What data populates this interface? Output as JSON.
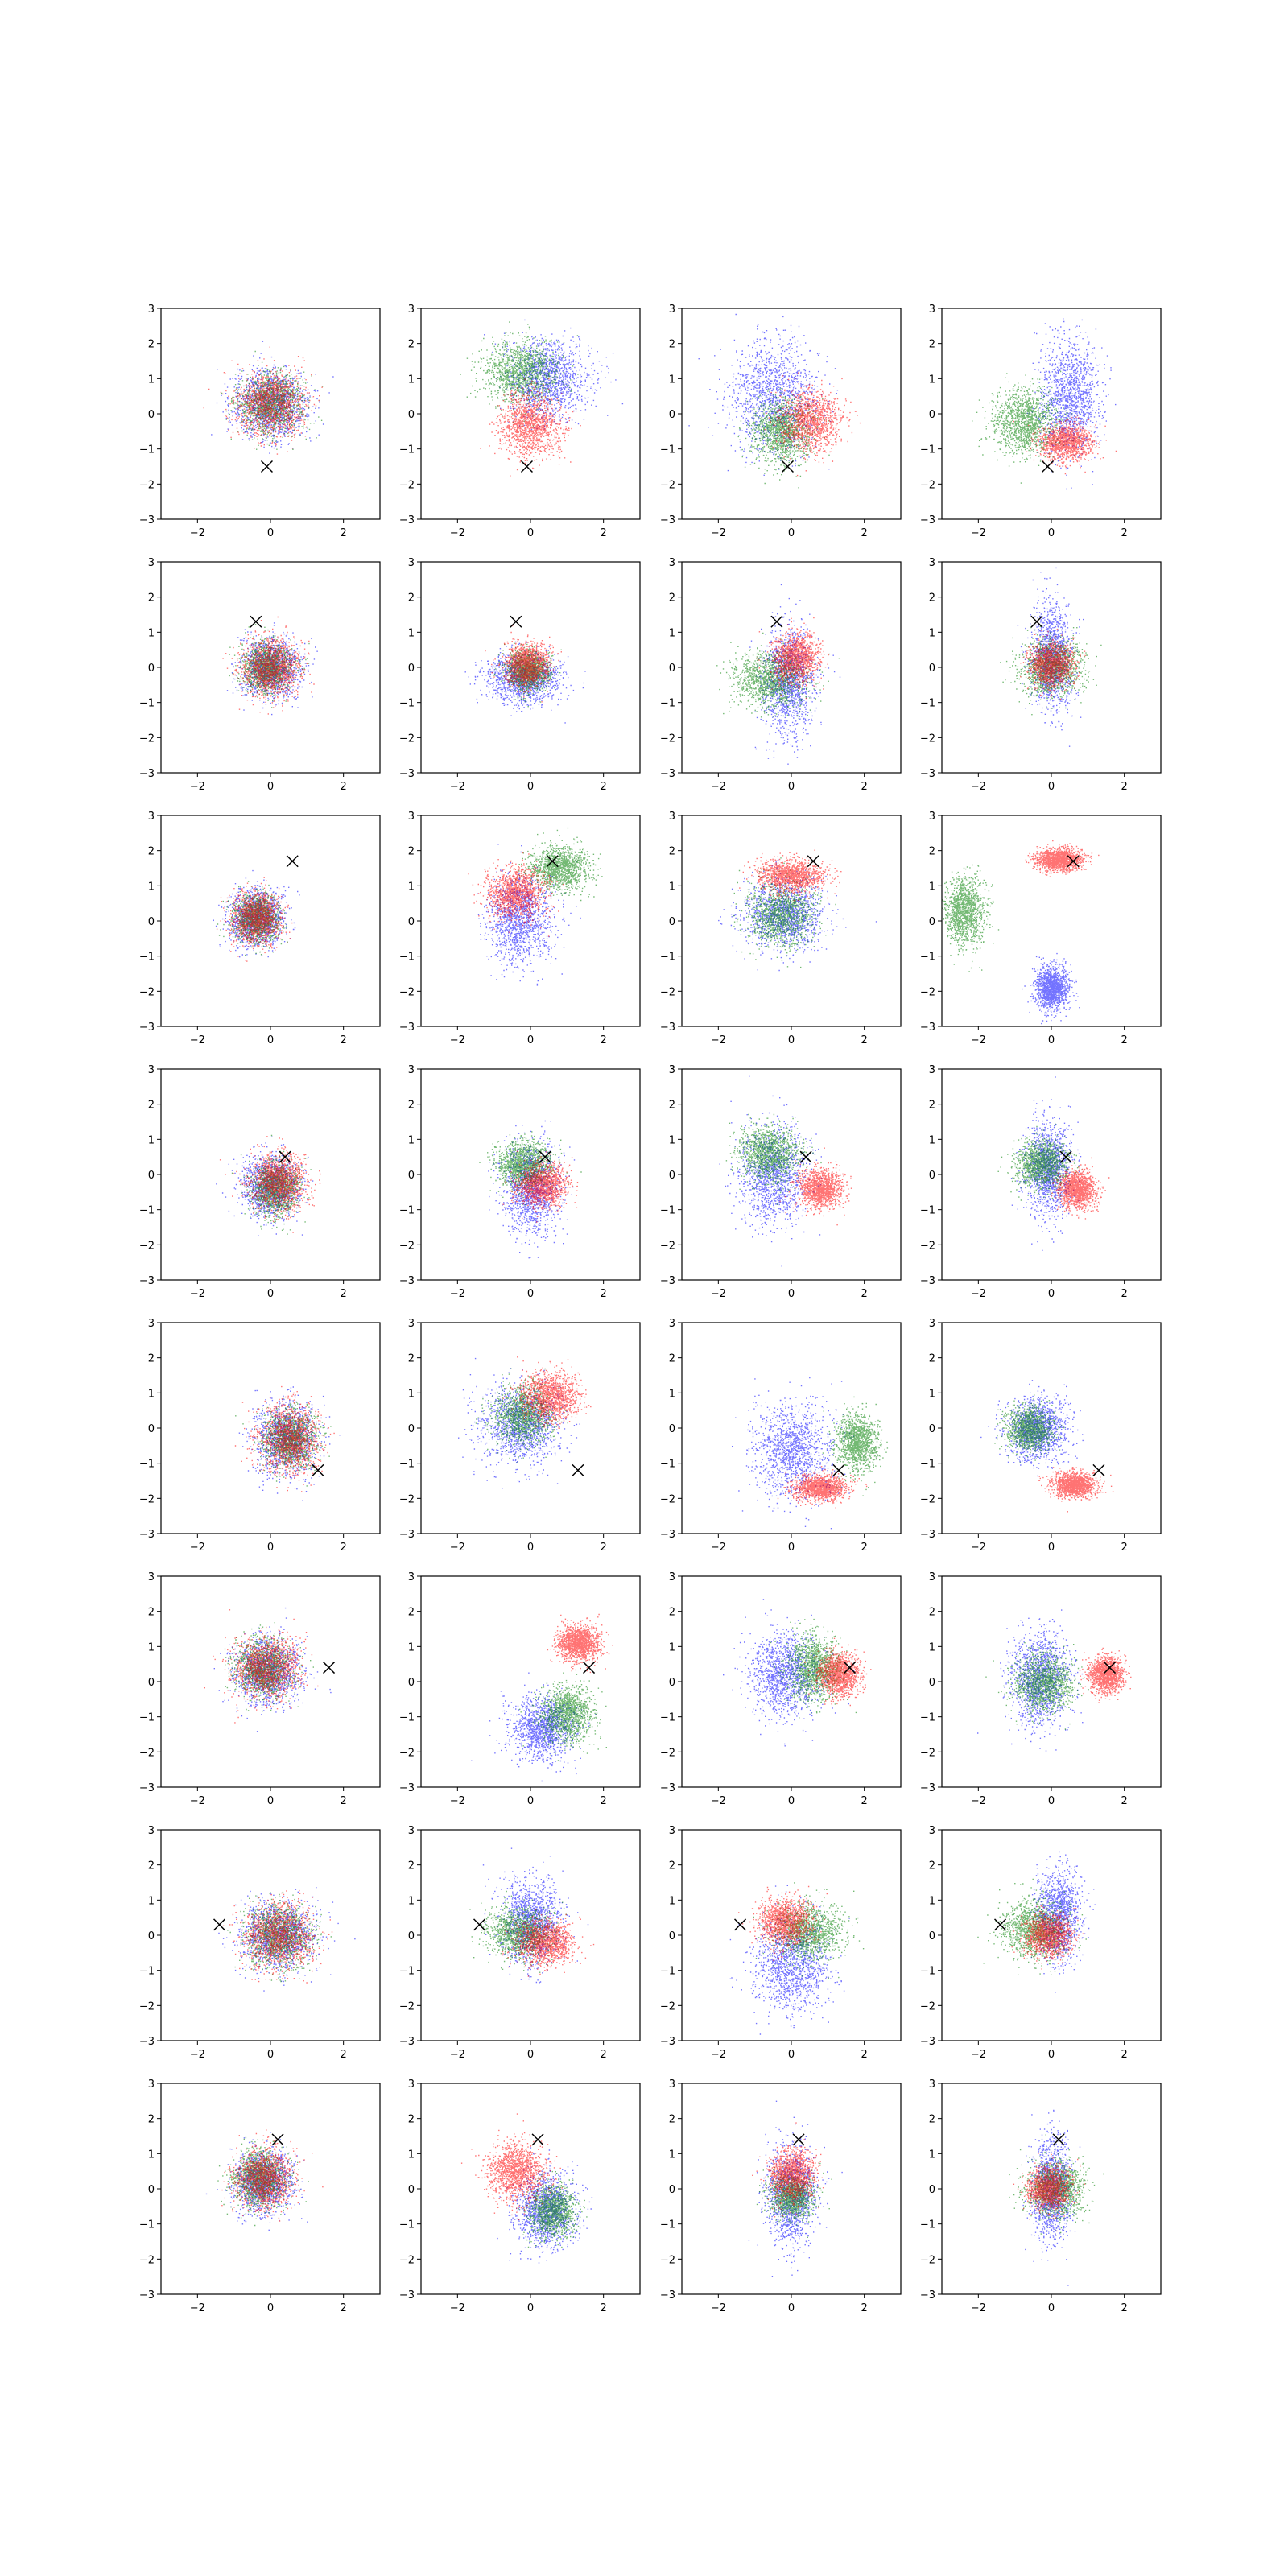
{
  "chart_data": {
    "type": "scatter",
    "layout": {
      "rows": 8,
      "cols": 4
    },
    "axes": {
      "xlim": [
        -3,
        3
      ],
      "ylim": [
        -3,
        3
      ],
      "xticks": [
        -2,
        0,
        2
      ],
      "yticks": [
        -3,
        -2,
        -1,
        0,
        1,
        2,
        3
      ],
      "xtick_labels": [
        "−2",
        "0",
        "2"
      ],
      "ytick_labels": [
        "−3",
        "−2",
        "−1",
        "0",
        "1",
        "2",
        "3"
      ],
      "grid": false
    },
    "series_colors": {
      "blue": "#0000ff",
      "green": "#008000",
      "red": "#ff0000"
    },
    "marker": {
      "symbol": "x",
      "color": "#000000"
    },
    "points_per_cluster": 1300,
    "panels": [
      {
        "marker": [
          -0.1,
          -1.5
        ],
        "clusters": [
          {
            "color": "blue",
            "cx": 0.0,
            "cy": 0.3,
            "sx": 1.0,
            "sy": 0.95
          },
          {
            "color": "green",
            "cx": 0.0,
            "cy": 0.3,
            "sx": 0.9,
            "sy": 0.85
          },
          {
            "color": "red",
            "cx": 0.0,
            "cy": 0.3,
            "sx": 0.95,
            "sy": 0.9
          }
        ]
      },
      {
        "marker": [
          -0.1,
          -1.5
        ],
        "clusters": [
          {
            "color": "blue",
            "cx": 0.5,
            "cy": 1.0,
            "sx": 1.1,
            "sy": 1.1
          },
          {
            "color": "green",
            "cx": -0.3,
            "cy": 1.2,
            "sx": 1.0,
            "sy": 0.9
          },
          {
            "color": "red",
            "cx": 0.0,
            "cy": -0.3,
            "sx": 0.85,
            "sy": 0.85
          }
        ]
      },
      {
        "marker": [
          -0.1,
          -1.5
        ],
        "clusters": [
          {
            "color": "blue",
            "cx": -0.5,
            "cy": 0.5,
            "sx": 1.2,
            "sy": 1.6
          },
          {
            "color": "green",
            "cx": -0.3,
            "cy": -0.5,
            "sx": 0.8,
            "sy": 0.9
          },
          {
            "color": "red",
            "cx": 0.5,
            "cy": -0.2,
            "sx": 0.8,
            "sy": 0.85
          }
        ]
      },
      {
        "marker": [
          -0.1,
          -1.5
        ],
        "clusters": [
          {
            "color": "blue",
            "cx": 0.5,
            "cy": 0.5,
            "sx": 0.8,
            "sy": 1.6
          },
          {
            "color": "green",
            "cx": -0.7,
            "cy": -0.2,
            "sx": 0.9,
            "sy": 0.9
          },
          {
            "color": "red",
            "cx": 0.4,
            "cy": -0.8,
            "sx": 0.7,
            "sy": 0.5
          }
        ]
      },
      {
        "marker": [
          -0.4,
          1.3
        ],
        "clusters": [
          {
            "color": "blue",
            "cx": 0.0,
            "cy": 0.0,
            "sx": 0.8,
            "sy": 0.85
          },
          {
            "color": "green",
            "cx": -0.1,
            "cy": 0.0,
            "sx": 0.65,
            "sy": 0.7
          },
          {
            "color": "red",
            "cx": 0.0,
            "cy": 0.0,
            "sx": 0.75,
            "sy": 0.8
          }
        ]
      },
      {
        "marker": [
          -0.4,
          1.3
        ],
        "clusters": [
          {
            "color": "blue",
            "cx": -0.2,
            "cy": -0.3,
            "sx": 1.0,
            "sy": 0.7
          },
          {
            "color": "green",
            "cx": -0.1,
            "cy": -0.1,
            "sx": 0.55,
            "sy": 0.55
          },
          {
            "color": "red",
            "cx": -0.1,
            "cy": 0.1,
            "sx": 0.6,
            "sy": 0.6
          }
        ]
      },
      {
        "marker": [
          -0.4,
          1.3
        ],
        "clusters": [
          {
            "color": "blue",
            "cx": -0.1,
            "cy": -0.4,
            "sx": 0.7,
            "sy": 1.5
          },
          {
            "color": "green",
            "cx": -0.6,
            "cy": -0.3,
            "sx": 1.0,
            "sy": 0.8
          },
          {
            "color": "red",
            "cx": 0.1,
            "cy": 0.3,
            "sx": 0.6,
            "sy": 0.7
          }
        ]
      },
      {
        "marker": [
          -0.4,
          1.3
        ],
        "clusters": [
          {
            "color": "blue",
            "cx": 0.0,
            "cy": 0.3,
            "sx": 0.55,
            "sy": 1.5
          },
          {
            "color": "green",
            "cx": 0.0,
            "cy": 0.0,
            "sx": 0.85,
            "sy": 0.8
          },
          {
            "color": "red",
            "cx": 0.0,
            "cy": 0.1,
            "sx": 0.6,
            "sy": 0.6
          }
        ]
      },
      {
        "marker": [
          0.6,
          1.7
        ],
        "clusters": [
          {
            "color": "blue",
            "cx": -0.4,
            "cy": 0.1,
            "sx": 0.75,
            "sy": 0.8
          },
          {
            "color": "green",
            "cx": -0.4,
            "cy": 0.1,
            "sx": 0.6,
            "sy": 0.65
          },
          {
            "color": "red",
            "cx": -0.4,
            "cy": 0.1,
            "sx": 0.65,
            "sy": 0.7
          }
        ]
      },
      {
        "marker": [
          0.6,
          1.7
        ],
        "clusters": [
          {
            "color": "blue",
            "cx": -0.3,
            "cy": 0.0,
            "sx": 0.9,
            "sy": 1.2
          },
          {
            "color": "green",
            "cx": 0.8,
            "cy": 1.5,
            "sx": 0.8,
            "sy": 0.6
          },
          {
            "color": "red",
            "cx": -0.4,
            "cy": 0.8,
            "sx": 0.8,
            "sy": 0.7
          }
        ]
      },
      {
        "marker": [
          0.6,
          1.7
        ],
        "clusters": [
          {
            "color": "blue",
            "cx": -0.2,
            "cy": 0.2,
            "sx": 1.1,
            "sy": 1.0
          },
          {
            "color": "green",
            "cx": -0.3,
            "cy": 0.2,
            "sx": 0.9,
            "sy": 0.9
          },
          {
            "color": "red",
            "cx": 0.0,
            "cy": 1.3,
            "sx": 0.85,
            "sy": 0.45
          }
        ]
      },
      {
        "marker": [
          0.6,
          1.7
        ],
        "clusters": [
          {
            "color": "blue",
            "cx": 0.0,
            "cy": -1.9,
            "sx": 0.45,
            "sy": 0.6
          },
          {
            "color": "green",
            "cx": -2.4,
            "cy": 0.3,
            "sx": 0.55,
            "sy": 0.95
          },
          {
            "color": "red",
            "cx": 0.2,
            "cy": 1.75,
            "sx": 0.65,
            "sy": 0.3
          }
        ]
      },
      {
        "marker": [
          0.4,
          0.5
        ],
        "clusters": [
          {
            "color": "blue",
            "cx": 0.0,
            "cy": -0.3,
            "sx": 0.8,
            "sy": 0.85
          },
          {
            "color": "green",
            "cx": 0.1,
            "cy": -0.4,
            "sx": 0.65,
            "sy": 0.75
          },
          {
            "color": "red",
            "cx": 0.2,
            "cy": -0.2,
            "sx": 0.75,
            "sy": 0.8
          }
        ]
      },
      {
        "marker": [
          0.4,
          0.5
        ],
        "clusters": [
          {
            "color": "blue",
            "cx": 0.0,
            "cy": -0.4,
            "sx": 0.75,
            "sy": 1.3
          },
          {
            "color": "green",
            "cx": -0.2,
            "cy": 0.3,
            "sx": 0.75,
            "sy": 0.65
          },
          {
            "color": "red",
            "cx": 0.3,
            "cy": -0.3,
            "sx": 0.7,
            "sy": 0.6
          }
        ]
      },
      {
        "marker": [
          0.4,
          0.5
        ],
        "clusters": [
          {
            "color": "blue",
            "cx": -0.5,
            "cy": 0.0,
            "sx": 0.9,
            "sy": 1.4
          },
          {
            "color": "green",
            "cx": -0.6,
            "cy": 0.6,
            "sx": 0.8,
            "sy": 0.75
          },
          {
            "color": "red",
            "cx": 0.8,
            "cy": -0.4,
            "sx": 0.6,
            "sy": 0.55
          }
        ]
      },
      {
        "marker": [
          0.4,
          0.5
        ],
        "clusters": [
          {
            "color": "blue",
            "cx": -0.1,
            "cy": 0.2,
            "sx": 0.6,
            "sy": 1.35
          },
          {
            "color": "green",
            "cx": -0.3,
            "cy": 0.3,
            "sx": 0.7,
            "sy": 0.65
          },
          {
            "color": "red",
            "cx": 0.7,
            "cy": -0.4,
            "sx": 0.5,
            "sy": 0.5
          }
        ]
      },
      {
        "marker": [
          1.3,
          -1.2
        ],
        "clusters": [
          {
            "color": "blue",
            "cx": 0.4,
            "cy": -0.3,
            "sx": 0.85,
            "sy": 1.0
          },
          {
            "color": "green",
            "cx": 0.5,
            "cy": -0.3,
            "sx": 0.7,
            "sy": 0.8
          },
          {
            "color": "red",
            "cx": 0.5,
            "cy": -0.3,
            "sx": 0.8,
            "sy": 0.95
          }
        ]
      },
      {
        "marker": [
          1.3,
          -1.2
        ],
        "clusters": [
          {
            "color": "blue",
            "cx": -0.3,
            "cy": 0.1,
            "sx": 1.1,
            "sy": 1.1
          },
          {
            "color": "green",
            "cx": -0.2,
            "cy": 0.4,
            "sx": 0.8,
            "sy": 0.8
          },
          {
            "color": "red",
            "cx": 0.5,
            "cy": 0.9,
            "sx": 0.75,
            "sy": 0.7
          }
        ]
      },
      {
        "marker": [
          1.3,
          -1.2
        ],
        "clusters": [
          {
            "color": "blue",
            "cx": 0.0,
            "cy": -0.6,
            "sx": 1.1,
            "sy": 1.3
          },
          {
            "color": "green",
            "cx": 1.8,
            "cy": -0.4,
            "sx": 0.55,
            "sy": 0.8
          },
          {
            "color": "red",
            "cx": 0.8,
            "cy": -1.7,
            "sx": 0.75,
            "sy": 0.35
          }
        ]
      },
      {
        "marker": [
          1.3,
          -1.2
        ],
        "clusters": [
          {
            "color": "blue",
            "cx": -0.4,
            "cy": 0.0,
            "sx": 0.8,
            "sy": 0.9
          },
          {
            "color": "green",
            "cx": -0.6,
            "cy": 0.0,
            "sx": 0.6,
            "sy": 0.6
          },
          {
            "color": "red",
            "cx": 0.6,
            "cy": -1.6,
            "sx": 0.6,
            "sy": 0.35
          }
        ]
      },
      {
        "marker": [
          1.6,
          0.4
        ],
        "clusters": [
          {
            "color": "blue",
            "cx": -0.1,
            "cy": 0.3,
            "sx": 0.9,
            "sy": 0.9
          },
          {
            "color": "green",
            "cx": -0.2,
            "cy": 0.4,
            "sx": 0.8,
            "sy": 0.8
          },
          {
            "color": "red",
            "cx": -0.1,
            "cy": 0.4,
            "sx": 0.9,
            "sy": 0.85
          }
        ]
      },
      {
        "marker": [
          1.6,
          0.4
        ],
        "clusters": [
          {
            "color": "blue",
            "cx": 0.3,
            "cy": -1.3,
            "sx": 0.9,
            "sy": 0.9
          },
          {
            "color": "green",
            "cx": 1.0,
            "cy": -0.9,
            "sx": 0.7,
            "sy": 0.8
          },
          {
            "color": "red",
            "cx": 1.3,
            "cy": 1.1,
            "sx": 0.55,
            "sy": 0.5
          }
        ]
      },
      {
        "marker": [
          1.6,
          0.4
        ],
        "clusters": [
          {
            "color": "blue",
            "cx": -0.2,
            "cy": 0.2,
            "sx": 0.95,
            "sy": 1.2
          },
          {
            "color": "green",
            "cx": 0.6,
            "cy": 0.4,
            "sx": 0.7,
            "sy": 0.9
          },
          {
            "color": "red",
            "cx": 1.3,
            "cy": 0.2,
            "sx": 0.55,
            "sy": 0.6
          }
        ]
      },
      {
        "marker": [
          1.6,
          0.4
        ],
        "clusters": [
          {
            "color": "blue",
            "cx": -0.3,
            "cy": 0.1,
            "sx": 0.8,
            "sy": 1.3
          },
          {
            "color": "green",
            "cx": -0.2,
            "cy": 0.0,
            "sx": 0.8,
            "sy": 0.8
          },
          {
            "color": "red",
            "cx": 1.5,
            "cy": 0.2,
            "sx": 0.45,
            "sy": 0.5
          }
        ]
      },
      {
        "marker": [
          -1.4,
          0.3
        ],
        "clusters": [
          {
            "color": "blue",
            "cx": 0.2,
            "cy": 0.0,
            "sx": 1.0,
            "sy": 0.9
          },
          {
            "color": "green",
            "cx": 0.2,
            "cy": 0.0,
            "sx": 0.9,
            "sy": 0.85
          },
          {
            "color": "red",
            "cx": 0.2,
            "cy": 0.0,
            "sx": 0.95,
            "sy": 0.9
          }
        ]
      },
      {
        "marker": [
          -1.4,
          0.3
        ],
        "clusters": [
          {
            "color": "blue",
            "cx": 0.0,
            "cy": 0.4,
            "sx": 0.8,
            "sy": 1.2
          },
          {
            "color": "green",
            "cx": -0.3,
            "cy": 0.1,
            "sx": 0.9,
            "sy": 0.7
          },
          {
            "color": "red",
            "cx": 0.4,
            "cy": -0.2,
            "sx": 0.75,
            "sy": 0.6
          }
        ]
      },
      {
        "marker": [
          -1.4,
          0.3
        ],
        "clusters": [
          {
            "color": "blue",
            "cx": 0.0,
            "cy": -0.8,
            "sx": 1.0,
            "sy": 1.3
          },
          {
            "color": "green",
            "cx": 0.5,
            "cy": 0.1,
            "sx": 0.9,
            "sy": 0.8
          },
          {
            "color": "red",
            "cx": -0.2,
            "cy": 0.4,
            "sx": 0.7,
            "sy": 0.65
          }
        ]
      },
      {
        "marker": [
          -1.4,
          0.3
        ],
        "clusters": [
          {
            "color": "blue",
            "cx": 0.2,
            "cy": 0.6,
            "sx": 0.6,
            "sy": 1.3
          },
          {
            "color": "green",
            "cx": -0.5,
            "cy": 0.2,
            "sx": 0.85,
            "sy": 0.8
          },
          {
            "color": "red",
            "cx": -0.1,
            "cy": 0.0,
            "sx": 0.6,
            "sy": 0.6
          }
        ]
      },
      {
        "marker": [
          0.2,
          1.4
        ],
        "clusters": [
          {
            "color": "blue",
            "cx": -0.2,
            "cy": 0.2,
            "sx": 0.8,
            "sy": 0.85
          },
          {
            "color": "green",
            "cx": -0.3,
            "cy": 0.3,
            "sx": 0.7,
            "sy": 0.75
          },
          {
            "color": "red",
            "cx": -0.2,
            "cy": 0.3,
            "sx": 0.75,
            "sy": 0.8
          }
        ]
      },
      {
        "marker": [
          0.2,
          1.4
        ],
        "clusters": [
          {
            "color": "blue",
            "cx": 0.4,
            "cy": -0.6,
            "sx": 0.8,
            "sy": 1.0
          },
          {
            "color": "green",
            "cx": 0.6,
            "cy": -0.6,
            "sx": 0.6,
            "sy": 0.7
          },
          {
            "color": "red",
            "cx": -0.4,
            "cy": 0.5,
            "sx": 0.8,
            "sy": 0.8
          }
        ]
      },
      {
        "marker": [
          0.2,
          1.4
        ],
        "clusters": [
          {
            "color": "blue",
            "cx": 0.0,
            "cy": -0.2,
            "sx": 0.7,
            "sy": 1.4
          },
          {
            "color": "green",
            "cx": 0.0,
            "cy": -0.2,
            "sx": 0.6,
            "sy": 0.6
          },
          {
            "color": "red",
            "cx": 0.0,
            "cy": 0.4,
            "sx": 0.6,
            "sy": 0.7
          }
        ]
      },
      {
        "marker": [
          0.2,
          1.4
        ],
        "clusters": [
          {
            "color": "blue",
            "cx": 0.0,
            "cy": 0.0,
            "sx": 0.5,
            "sy": 1.4
          },
          {
            "color": "green",
            "cx": 0.1,
            "cy": 0.0,
            "sx": 0.75,
            "sy": 0.75
          },
          {
            "color": "red",
            "cx": -0.1,
            "cy": 0.0,
            "sx": 0.55,
            "sy": 0.6
          }
        ]
      }
    ]
  }
}
